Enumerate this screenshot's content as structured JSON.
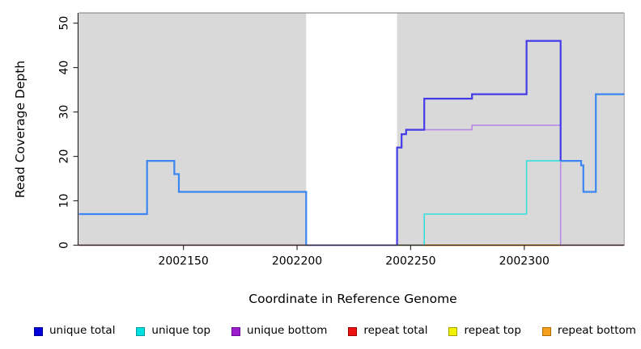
{
  "figure": {
    "bg": "#ffffff",
    "panel_bg": "#d9d9d9",
    "spine_color": "#222222",
    "top_border_color": "#909090",
    "right_border_color": "#b4b4b4",
    "tick_color": "#333333"
  },
  "chart_data": {
    "type": "line",
    "step": true,
    "title": "",
    "xlabel": "Coordinate in Reference Genome",
    "ylabel": "Read Coverage Depth",
    "xlim": [
      2002104,
      2002344
    ],
    "ylim": [
      0,
      52.3
    ],
    "x_ticks": [
      2002150,
      2002200,
      2002250,
      2002300
    ],
    "y_ticks": [
      0,
      10,
      20,
      30,
      40,
      50
    ],
    "grid": false,
    "legend_position": "bottom",
    "gap_band": {
      "x0": 2002204,
      "x1": 2002244,
      "color": "#ffffff"
    },
    "series": [
      {
        "name": "unique total",
        "color": "#0000dd",
        "steps": [
          [
            2002104,
            7
          ],
          [
            2002134,
            19
          ],
          [
            2002146,
            16
          ],
          [
            2002148,
            12
          ],
          [
            2002204,
            0
          ],
          [
            2002244,
            22
          ],
          [
            2002246,
            25
          ],
          [
            2002248,
            26
          ],
          [
            2002256,
            33
          ],
          [
            2002277,
            34
          ],
          [
            2002301,
            46
          ],
          [
            2002316,
            19
          ],
          [
            2002325,
            18
          ],
          [
            2002326,
            12
          ],
          [
            2002331.5,
            34
          ]
        ]
      },
      {
        "name": "unique top",
        "color": "#00e0e0",
        "steps": [
          [
            2002104,
            7
          ],
          [
            2002134,
            19
          ],
          [
            2002146,
            16
          ],
          [
            2002148,
            12
          ],
          [
            2002204,
            0
          ],
          [
            2002256,
            7
          ],
          [
            2002301,
            19
          ],
          [
            2002325,
            18
          ],
          [
            2002326,
            12
          ],
          [
            2002331.5,
            34
          ]
        ]
      },
      {
        "name": "unique bottom",
        "color": "#9a1ecc",
        "steps": [
          [
            2002104,
            0
          ],
          [
            2002244,
            22
          ],
          [
            2002246,
            25
          ],
          [
            2002248,
            26
          ],
          [
            2002277,
            27
          ],
          [
            2002316,
            0
          ]
        ]
      },
      {
        "name": "repeat total",
        "color": "#ee1111",
        "steps": [
          [
            2002104,
            0
          ]
        ]
      },
      {
        "name": "repeat top",
        "color": "#f2f200",
        "steps": [
          [
            2002104,
            0
          ]
        ]
      },
      {
        "name": "repeat bottom",
        "color": "#f5a01e",
        "steps": [
          [
            2002104,
            0
          ]
        ]
      }
    ],
    "render_segments": [
      {
        "name": "repeat-total-zero-line",
        "color": "#d8436b",
        "width": 1.6,
        "points": [
          [
            2002104,
            0
          ],
          [
            2002344,
            0
          ]
        ]
      },
      {
        "name": "gap-zero-line",
        "color": "#8f85f0",
        "width": 2,
        "points": [
          [
            2002204,
            0
          ],
          [
            2002244,
            0
          ]
        ]
      },
      {
        "name": "mixed-zero-line-green",
        "color": "#79cf79",
        "width": 1.6,
        "points": [
          [
            2002244,
            0
          ],
          [
            2002256,
            0
          ]
        ]
      },
      {
        "name": "repeat-bottom-zero-line",
        "color": "#ff9d1e",
        "width": 2,
        "points": [
          [
            2002256,
            0
          ],
          [
            2002316,
            0
          ]
        ]
      },
      {
        "name": "unique-bottom-line",
        "color": "#b88ae8",
        "width": 1.6,
        "points": [
          [
            2002248,
            26
          ],
          [
            2002277,
            26
          ],
          [
            2002277,
            27
          ],
          [
            2002316,
            27
          ],
          [
            2002316,
            0
          ]
        ]
      },
      {
        "name": "unique-top-line",
        "color": "#37dede",
        "width": 1.6,
        "points": [
          [
            2002256,
            0
          ],
          [
            2002256,
            7
          ],
          [
            2002301,
            7
          ],
          [
            2002301,
            19
          ],
          [
            2002316,
            19
          ]
        ]
      },
      {
        "name": "unique-total-line-solo",
        "color": "#443be8",
        "width": 2.2,
        "points": [
          [
            2002244,
            0
          ],
          [
            2002244,
            22
          ],
          [
            2002246,
            22
          ],
          [
            2002246,
            25
          ],
          [
            2002248,
            25
          ],
          [
            2002248,
            26
          ],
          [
            2002256,
            26
          ],
          [
            2002256,
            33
          ],
          [
            2002277,
            33
          ],
          [
            2002277,
            34
          ],
          [
            2002301,
            34
          ],
          [
            2002301,
            46
          ],
          [
            2002316,
            46
          ],
          [
            2002316,
            19
          ]
        ]
      },
      {
        "name": "unique-total-line-left",
        "color": "#3b86f0",
        "width": 2.2,
        "points": [
          [
            2002104,
            7
          ],
          [
            2002134,
            7
          ],
          [
            2002134,
            19
          ],
          [
            2002146,
            19
          ],
          [
            2002146,
            16
          ],
          [
            2002148,
            16
          ],
          [
            2002148,
            12
          ],
          [
            2002204,
            12
          ],
          [
            2002204,
            0
          ]
        ]
      },
      {
        "name": "unique-total-line-right",
        "color": "#3b86f0",
        "width": 2.2,
        "points": [
          [
            2002316,
            19
          ],
          [
            2002325,
            19
          ],
          [
            2002325,
            18
          ],
          [
            2002326,
            18
          ],
          [
            2002326,
            12
          ],
          [
            2002331.5,
            12
          ],
          [
            2002331.5,
            34
          ],
          [
            2002344,
            34
          ]
        ]
      }
    ]
  },
  "legend": {
    "items": [
      {
        "label": "unique total",
        "fill": "#0000dd",
        "edge": "#000090"
      },
      {
        "label": "unique top",
        "fill": "#00e0e0",
        "edge": "#009999"
      },
      {
        "label": "unique bottom",
        "fill": "#9a1ecc",
        "edge": "#6a0a96"
      },
      {
        "label": "repeat total",
        "fill": "#ee1111",
        "edge": "#990000"
      },
      {
        "label": "repeat top",
        "fill": "#f2f200",
        "edge": "#a0a000"
      },
      {
        "label": "repeat bottom",
        "fill": "#f5a01e",
        "edge": "#b06c00"
      }
    ]
  }
}
